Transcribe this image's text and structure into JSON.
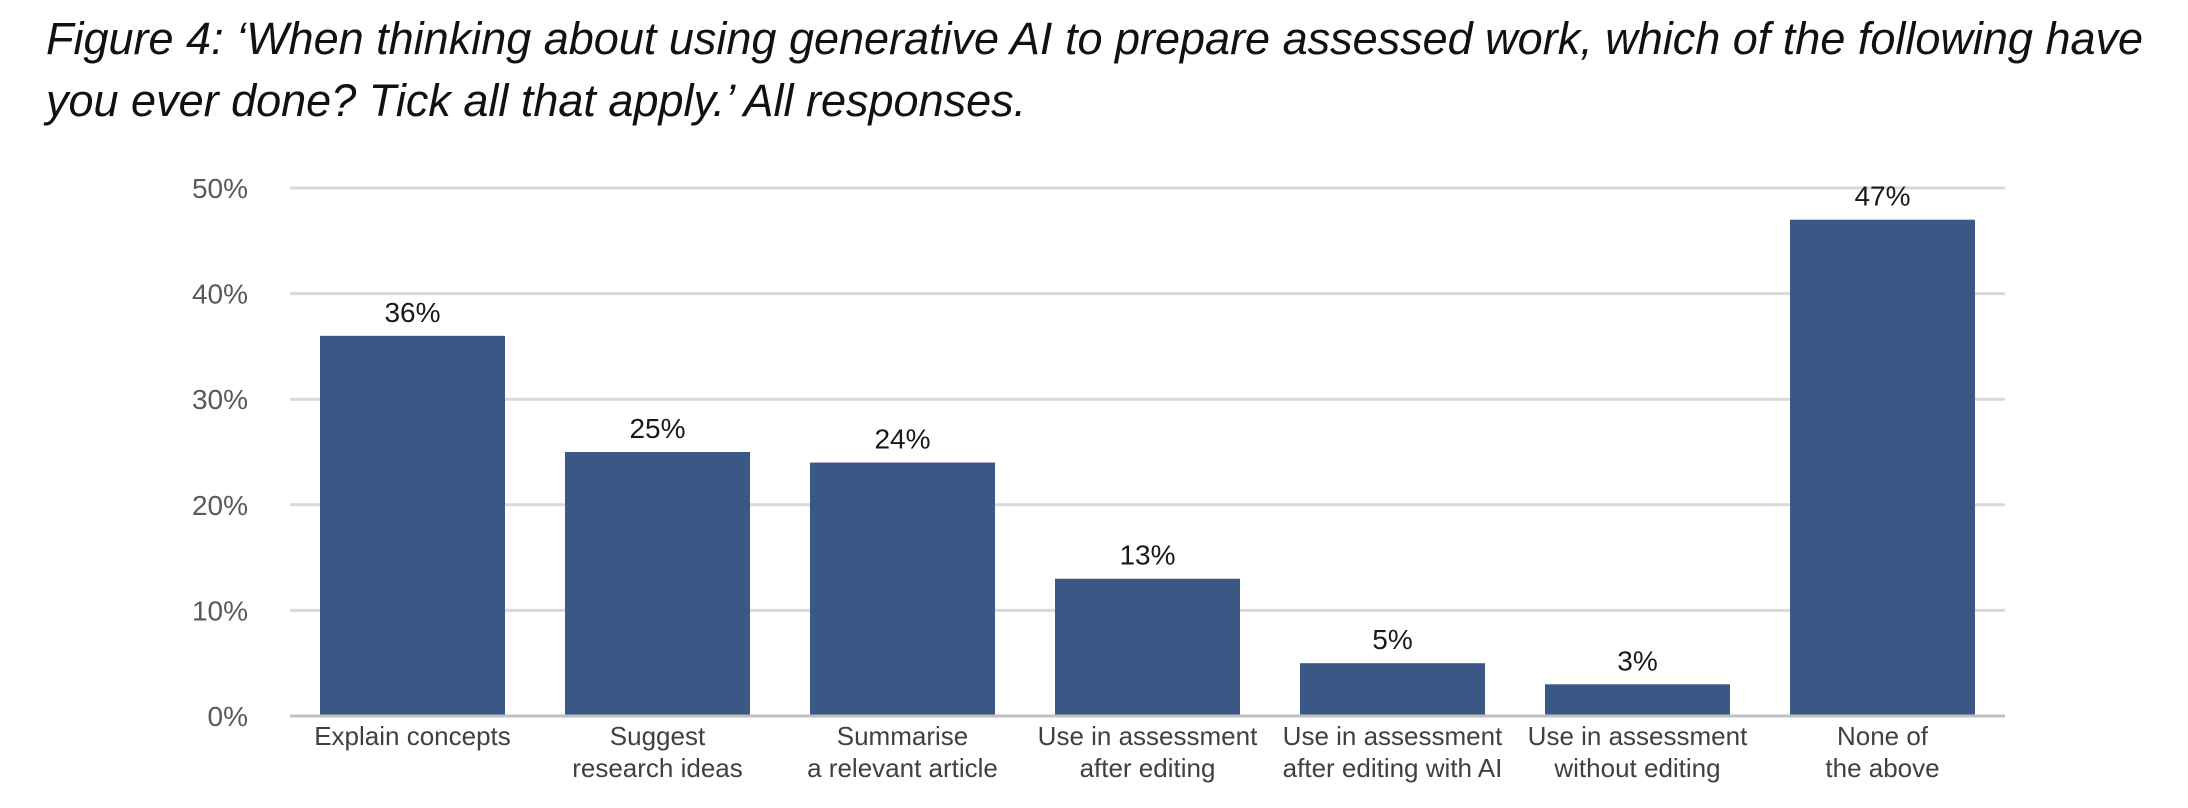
{
  "figure": {
    "title": "Figure 4: ‘When thinking about using generative AI to prepare assessed work, which of the following have you ever done? Tick all that apply.’ All responses."
  },
  "chart_data": {
    "type": "bar",
    "title": "Figure 4: ‘When thinking about using generative AI to prepare assessed work, which of the following have you ever done? Tick all that apply.’ All responses.",
    "categories": [
      [
        "Explain concepts"
      ],
      [
        "Suggest",
        "research ideas"
      ],
      [
        "Summarise",
        "a relevant article"
      ],
      [
        "Use in assessment",
        "after editing"
      ],
      [
        "Use in assessment",
        "after editing with AI"
      ],
      [
        "Use in assessment",
        "without editing"
      ],
      [
        "None of",
        "the above"
      ]
    ],
    "values": [
      36,
      25,
      24,
      13,
      5,
      3,
      47
    ],
    "data_labels": [
      "36%",
      "25%",
      "24%",
      "13%",
      "5%",
      "3%",
      "47%"
    ],
    "y_ticks": [
      0,
      10,
      20,
      30,
      40,
      50
    ],
    "y_tick_labels": [
      "0%",
      "10%",
      "20%",
      "30%",
      "40%",
      "50%"
    ],
    "ylim": [
      0,
      50
    ],
    "xlabel": "",
    "ylabel": "",
    "grid": true,
    "legend": "none",
    "colors": {
      "bar": "#3a5786",
      "grid": "#d9d9d9",
      "axis": "#bfbfbf"
    }
  }
}
